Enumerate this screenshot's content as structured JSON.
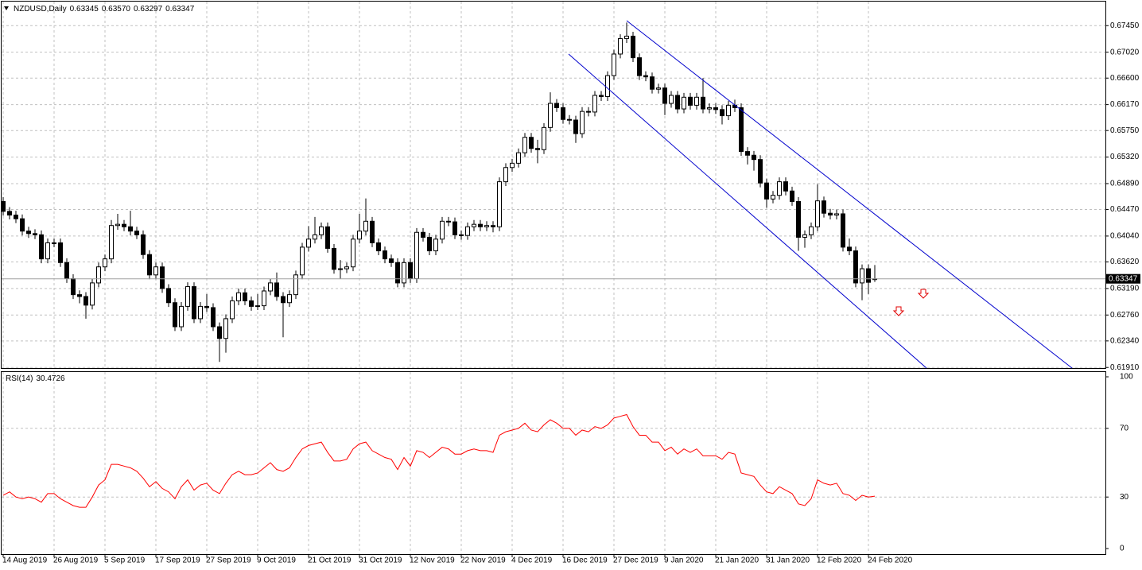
{
  "chart_data": [
    {
      "type": "candlestick",
      "title": "NZDUSD,Daily",
      "value_labels": [
        "0.63345",
        "0.63570",
        "0.63297",
        "0.63347"
      ],
      "up_color": "#ffffff",
      "down_color": "#000000",
      "line_color": "#000000",
      "grid": true,
      "ylim": [
        0.619,
        0.6784
      ],
      "yticks": [
        {
          "value": 0.6745,
          "label": "0.67450"
        },
        {
          "value": 0.6702,
          "label": "0.67020"
        },
        {
          "value": 0.666,
          "label": "0.66600"
        },
        {
          "value": 0.6617,
          "label": "0.66170"
        },
        {
          "value": 0.6575,
          "label": "0.65750"
        },
        {
          "value": 0.6532,
          "label": "0.65320"
        },
        {
          "value": 0.6489,
          "label": "0.64890"
        },
        {
          "value": 0.6447,
          "label": "0.64470"
        },
        {
          "value": 0.6404,
          "label": "0.64040"
        },
        {
          "value": 0.6362,
          "label": "0.63620"
        },
        {
          "value": 0.6319,
          "label": "0.63190"
        },
        {
          "value": 0.6276,
          "label": "0.62760"
        },
        {
          "value": 0.6234,
          "label": "0.62340"
        },
        {
          "value": 0.6191,
          "label": "0.61910"
        }
      ],
      "categories": [
        "14 Aug 2019",
        null,
        null,
        null,
        null,
        null,
        null,
        null,
        "26 Aug 2019",
        null,
        null,
        null,
        null,
        null,
        null,
        null,
        "5 Sep 2019",
        null,
        null,
        null,
        null,
        null,
        null,
        null,
        "17 Sep 2019",
        null,
        null,
        null,
        null,
        null,
        null,
        null,
        "27 Sep 2019",
        null,
        null,
        null,
        null,
        null,
        null,
        null,
        "9 Oct 2019",
        null,
        null,
        null,
        null,
        null,
        null,
        null,
        "21 Oct 2019",
        null,
        null,
        null,
        null,
        null,
        null,
        null,
        "31 Oct 2019",
        null,
        null,
        null,
        null,
        null,
        null,
        null,
        "12 Nov 2019",
        null,
        null,
        null,
        null,
        null,
        null,
        null,
        "22 Nov 2019",
        null,
        null,
        null,
        null,
        null,
        null,
        null,
        "4 Dec 2019",
        null,
        null,
        null,
        null,
        null,
        null,
        null,
        "16 Dec 2019",
        null,
        null,
        null,
        null,
        null,
        null,
        null,
        "27 Dec 2019",
        null,
        null,
        null,
        null,
        null,
        null,
        null,
        "9 Jan 2020",
        null,
        null,
        null,
        null,
        null,
        null,
        null,
        "21 Jan 2020",
        null,
        null,
        null,
        null,
        null,
        null,
        null,
        "31 Jan 2020",
        null,
        null,
        null,
        null,
        null,
        null,
        null,
        "12 Feb 2020",
        null,
        null,
        null,
        null,
        null,
        null,
        null,
        "24 Feb 2020",
        null
      ],
      "ohlc": [
        [
          0.646,
          0.6467,
          0.6437,
          0.6444
        ],
        [
          0.6444,
          0.6451,
          0.6431,
          0.6438
        ],
        [
          0.6438,
          0.6445,
          0.6425,
          0.6432
        ],
        [
          0.6432,
          0.6439,
          0.6405,
          0.6412
        ],
        [
          0.6412,
          0.6419,
          0.6401,
          0.6408
        ],
        [
          0.6408,
          0.6415,
          0.6399,
          0.6406
        ],
        [
          0.6406,
          0.6413,
          0.636,
          0.6367
        ],
        [
          0.6367,
          0.64,
          0.636,
          0.6393
        ],
        [
          0.6393,
          0.64,
          0.6386,
          0.6393
        ],
        [
          0.6393,
          0.64,
          0.6354,
          0.6361
        ],
        [
          0.6361,
          0.6368,
          0.6328,
          0.6335
        ],
        [
          0.6335,
          0.6342,
          0.6302,
          0.6309
        ],
        [
          0.6309,
          0.6316,
          0.6295,
          0.6306
        ],
        [
          0.6306,
          0.6313,
          0.627,
          0.6292
        ],
        [
          0.6292,
          0.6335,
          0.6285,
          0.6328
        ],
        [
          0.6328,
          0.6361,
          0.6321,
          0.6354
        ],
        [
          0.6354,
          0.6374,
          0.6347,
          0.6367
        ],
        [
          0.6367,
          0.643,
          0.636,
          0.6421
        ],
        [
          0.6421,
          0.644,
          0.6414,
          0.6423
        ],
        [
          0.6423,
          0.643,
          0.6412,
          0.6419
        ],
        [
          0.6419,
          0.6445,
          0.6405,
          0.6412
        ],
        [
          0.6412,
          0.6419,
          0.6399,
          0.6406
        ],
        [
          0.6406,
          0.6413,
          0.6367,
          0.6374
        ],
        [
          0.6374,
          0.6381,
          0.6334,
          0.6341
        ],
        [
          0.6341,
          0.6361,
          0.6334,
          0.6354
        ],
        [
          0.6354,
          0.6361,
          0.6312,
          0.6319
        ],
        [
          0.6319,
          0.6326,
          0.6289,
          0.6296
        ],
        [
          0.6296,
          0.6303,
          0.625,
          0.6257
        ],
        [
          0.6257,
          0.6297,
          0.625,
          0.629
        ],
        [
          0.629,
          0.6329,
          0.6283,
          0.6322
        ],
        [
          0.6322,
          0.6329,
          0.6263,
          0.627
        ],
        [
          0.627,
          0.6297,
          0.6263,
          0.629
        ],
        [
          0.629,
          0.631,
          0.6281,
          0.6288
        ],
        [
          0.6288,
          0.6295,
          0.625,
          0.6257
        ],
        [
          0.6257,
          0.6264,
          0.62,
          0.6238
        ],
        [
          0.6238,
          0.6277,
          0.6215,
          0.627
        ],
        [
          0.627,
          0.6306,
          0.6263,
          0.6299
        ],
        [
          0.6299,
          0.6319,
          0.6292,
          0.6312
        ],
        [
          0.6312,
          0.6319,
          0.6292,
          0.6299
        ],
        [
          0.6299,
          0.6306,
          0.6283,
          0.629
        ],
        [
          0.629,
          0.631,
          0.6284,
          0.6291
        ],
        [
          0.6291,
          0.6322,
          0.6284,
          0.6315
        ],
        [
          0.6315,
          0.6335,
          0.6308,
          0.6328
        ],
        [
          0.6328,
          0.6345,
          0.6299,
          0.6306
        ],
        [
          0.6306,
          0.6313,
          0.624,
          0.6296
        ],
        [
          0.6296,
          0.6316,
          0.6289,
          0.6309
        ],
        [
          0.6309,
          0.6348,
          0.6302,
          0.6341
        ],
        [
          0.6341,
          0.6393,
          0.6334,
          0.6386
        ],
        [
          0.6386,
          0.642,
          0.6379,
          0.6399
        ],
        [
          0.6399,
          0.6435,
          0.6392,
          0.6406
        ],
        [
          0.6406,
          0.6426,
          0.6399,
          0.6419
        ],
        [
          0.6419,
          0.6426,
          0.6377,
          0.6384
        ],
        [
          0.6384,
          0.6391,
          0.6343,
          0.635
        ],
        [
          0.635,
          0.6365,
          0.6335,
          0.6351
        ],
        [
          0.6351,
          0.6361,
          0.6344,
          0.6354
        ],
        [
          0.6354,
          0.6406,
          0.6347,
          0.6399
        ],
        [
          0.6399,
          0.644,
          0.6392,
          0.6412
        ],
        [
          0.6412,
          0.6465,
          0.6405,
          0.6428
        ],
        [
          0.6428,
          0.6435,
          0.6386,
          0.6393
        ],
        [
          0.6393,
          0.64,
          0.6373,
          0.638
        ],
        [
          0.638,
          0.6387,
          0.636,
          0.6367
        ],
        [
          0.6367,
          0.6374,
          0.6354,
          0.6361
        ],
        [
          0.6361,
          0.6368,
          0.6321,
          0.6328
        ],
        [
          0.6328,
          0.6368,
          0.6321,
          0.6361
        ],
        [
          0.6361,
          0.6368,
          0.6328,
          0.6335
        ],
        [
          0.6335,
          0.6417,
          0.6328,
          0.641
        ],
        [
          0.641,
          0.6417,
          0.6395,
          0.6402
        ],
        [
          0.6402,
          0.6409,
          0.6373,
          0.638
        ],
        [
          0.638,
          0.6406,
          0.6373,
          0.6399
        ],
        [
          0.6399,
          0.6435,
          0.6392,
          0.6428
        ],
        [
          0.6428,
          0.6435,
          0.642,
          0.6427
        ],
        [
          0.6427,
          0.6434,
          0.6399,
          0.6406
        ],
        [
          0.6406,
          0.6413,
          0.6398,
          0.6405
        ],
        [
          0.6405,
          0.6426,
          0.6398,
          0.6419
        ],
        [
          0.6419,
          0.643,
          0.6412,
          0.6423
        ],
        [
          0.6423,
          0.643,
          0.6412,
          0.6419
        ],
        [
          0.6419,
          0.6428,
          0.6412,
          0.6421
        ],
        [
          0.6421,
          0.6428,
          0.641,
          0.6419
        ],
        [
          0.6419,
          0.6499,
          0.6412,
          0.6492
        ],
        [
          0.6492,
          0.6522,
          0.6485,
          0.6515
        ],
        [
          0.6515,
          0.6529,
          0.6508,
          0.6522
        ],
        [
          0.6522,
          0.6546,
          0.6515,
          0.6539
        ],
        [
          0.6539,
          0.6571,
          0.6532,
          0.6564
        ],
        [
          0.6564,
          0.6571,
          0.6539,
          0.6546
        ],
        [
          0.6546,
          0.656,
          0.6522,
          0.6544
        ],
        [
          0.6544,
          0.6587,
          0.6537,
          0.658
        ],
        [
          0.658,
          0.6637,
          0.6573,
          0.6619
        ],
        [
          0.6619,
          0.6626,
          0.6605,
          0.6612
        ],
        [
          0.6612,
          0.6619,
          0.6586,
          0.6593
        ],
        [
          0.6593,
          0.66,
          0.6585,
          0.6592
        ],
        [
          0.6592,
          0.6599,
          0.6555,
          0.657
        ],
        [
          0.657,
          0.6613,
          0.6563,
          0.6606
        ],
        [
          0.6606,
          0.6613,
          0.6598,
          0.6605
        ],
        [
          0.6605,
          0.6639,
          0.6598,
          0.6632
        ],
        [
          0.6632,
          0.6639,
          0.6623,
          0.663
        ],
        [
          0.663,
          0.6671,
          0.6623,
          0.6664
        ],
        [
          0.6664,
          0.6706,
          0.6657,
          0.6699
        ],
        [
          0.6699,
          0.6731,
          0.6692,
          0.6724
        ],
        [
          0.6724,
          0.675,
          0.6717,
          0.6728
        ],
        [
          0.6728,
          0.6735,
          0.6686,
          0.6693
        ],
        [
          0.6693,
          0.67,
          0.6657,
          0.6664
        ],
        [
          0.6664,
          0.6671,
          0.6655,
          0.6662
        ],
        [
          0.6662,
          0.6669,
          0.6635,
          0.6642
        ],
        [
          0.6642,
          0.6651,
          0.6635,
          0.6644
        ],
        [
          0.6644,
          0.6651,
          0.66,
          0.6619
        ],
        [
          0.6619,
          0.6639,
          0.6612,
          0.6632
        ],
        [
          0.6632,
          0.6639,
          0.6603,
          0.661
        ],
        [
          0.661,
          0.6636,
          0.6603,
          0.6629
        ],
        [
          0.6629,
          0.6636,
          0.6609,
          0.6616
        ],
        [
          0.6616,
          0.6636,
          0.6609,
          0.6629
        ],
        [
          0.6629,
          0.666,
          0.6603,
          0.661
        ],
        [
          0.661,
          0.6619,
          0.6603,
          0.6612
        ],
        [
          0.6612,
          0.6619,
          0.6602,
          0.6609
        ],
        [
          0.6609,
          0.6616,
          0.6585,
          0.6599
        ],
        [
          0.6599,
          0.6623,
          0.6592,
          0.6616
        ],
        [
          0.6616,
          0.6625,
          0.6605,
          0.6612
        ],
        [
          0.6612,
          0.6619,
          0.6534,
          0.6541
        ],
        [
          0.6541,
          0.6548,
          0.652,
          0.6535
        ],
        [
          0.6535,
          0.6542,
          0.651,
          0.6528
        ],
        [
          0.6528,
          0.6535,
          0.6483,
          0.649
        ],
        [
          0.649,
          0.6497,
          0.645,
          0.6464
        ],
        [
          0.6464,
          0.6477,
          0.6457,
          0.647
        ],
        [
          0.647,
          0.6499,
          0.6463,
          0.6492
        ],
        [
          0.6492,
          0.6499,
          0.647,
          0.6477
        ],
        [
          0.6477,
          0.6484,
          0.6453,
          0.646
        ],
        [
          0.646,
          0.6467,
          0.638,
          0.6402
        ],
        [
          0.6402,
          0.6413,
          0.6385,
          0.6406
        ],
        [
          0.6406,
          0.6426,
          0.6399,
          0.6419
        ],
        [
          0.6419,
          0.6488,
          0.6412,
          0.6461
        ],
        [
          0.6461,
          0.6468,
          0.6434,
          0.6441
        ],
        [
          0.6441,
          0.6448,
          0.6431,
          0.6438
        ],
        [
          0.6438,
          0.6447,
          0.6431,
          0.644
        ],
        [
          0.644,
          0.6447,
          0.6379,
          0.6386
        ],
        [
          0.6386,
          0.64,
          0.6373,
          0.638
        ],
        [
          0.638,
          0.6387,
          0.6321,
          0.6328
        ],
        [
          0.6328,
          0.6358,
          0.63,
          0.6351
        ],
        [
          0.6351,
          0.6358,
          0.631,
          0.6329
        ],
        [
          0.63345,
          0.6357,
          0.63297,
          0.63347
        ]
      ]
    },
    {
      "type": "line",
      "title": "RSI(14)",
      "color": "#ff0000",
      "ylim": [
        0,
        100
      ],
      "yticks": [
        100,
        70,
        30,
        0
      ],
      "values": [
        31,
        33,
        30,
        29,
        30,
        29,
        27,
        32,
        32,
        29,
        27,
        25,
        24,
        24,
        30,
        37,
        40,
        49,
        49,
        48,
        47,
        45,
        41,
        36,
        39,
        35,
        33,
        29,
        36,
        40,
        34,
        37,
        38,
        34,
        32,
        38,
        43,
        45,
        43,
        43,
        44,
        47,
        50,
        46,
        45,
        47,
        53,
        58,
        60,
        61,
        62,
        56,
        51,
        51,
        52,
        58,
        61,
        62,
        57,
        55,
        53,
        52,
        46,
        53,
        48,
        57,
        56,
        53,
        56,
        59,
        58,
        55,
        55,
        57,
        58,
        57,
        57,
        56,
        66,
        68,
        69,
        70,
        73,
        69,
        68,
        72,
        75,
        73,
        70,
        70,
        66,
        69,
        68,
        71,
        70,
        72,
        76,
        77,
        78,
        71,
        66,
        66,
        62,
        62,
        57,
        59,
        55,
        58,
        56,
        58,
        54,
        54,
        54,
        52,
        56,
        55,
        44,
        43,
        42,
        37,
        33,
        32,
        36,
        34,
        32,
        26,
        25,
        29,
        40,
        38,
        37,
        38,
        32,
        31,
        28,
        31,
        30,
        30.4726
      ]
    }
  ]
}
